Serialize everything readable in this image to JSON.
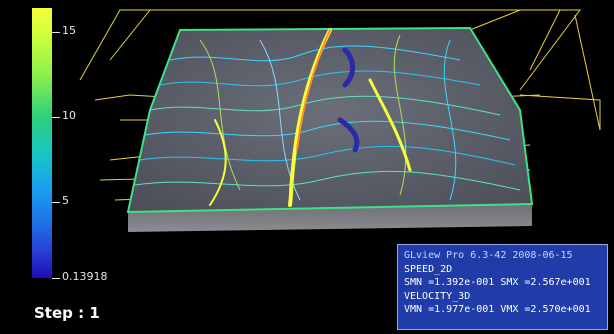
{
  "colorbar": {
    "ticks": [
      {
        "label": "15"
      },
      {
        "label": "10"
      },
      {
        "label": "5"
      },
      {
        "label": "0.13918"
      }
    ]
  },
  "step_label": "Step : 1",
  "info": {
    "title": "GLview Pro 6.3-42  2008-06-15",
    "line2": "SPEED_2D",
    "line3": "SMN =1.392e-001  SMX =2.567e+001",
    "line4": "VELOCITY_3D",
    "line5": "VMN =1.977e-001  VMX =2.570e+001"
  },
  "colors": {
    "background": "#000000",
    "wireframe": "#e9d23a",
    "terrain_base": "#5a5e66",
    "info_box": "#1f3ca8"
  }
}
